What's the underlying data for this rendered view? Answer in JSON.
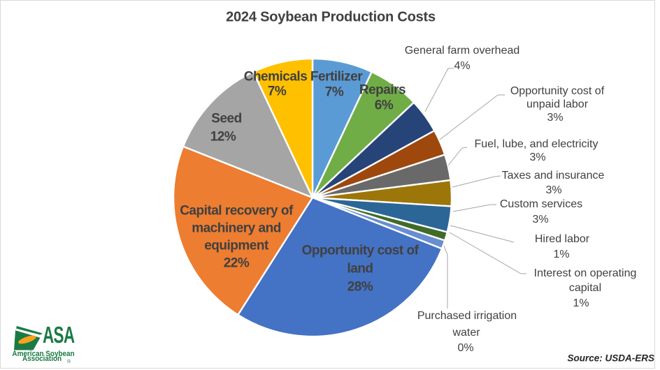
{
  "title": "2024 Soybean Production Costs",
  "source_note": "Source: USDA-ERS",
  "logo": {
    "org_abbr": "ASA",
    "org_line1": "American Soybean",
    "org_line2": "Association",
    "registered_mark": "®",
    "green": "#1B7A44",
    "orange": "#F6A21D"
  },
  "chart_data": {
    "type": "pie",
    "title": "2024 Soybean Production Costs",
    "start_angle_deg": 0,
    "direction": "clockwise",
    "label_text_color": "#404040",
    "leader_line_color": "#A6A6A6",
    "pct_suffix": "%",
    "segments": [
      {
        "label": "Fertilizer",
        "value": 7,
        "color": "#5B9BD5",
        "label_position": "inside",
        "label_lines": [
          "Fertilizer"
        ]
      },
      {
        "label": "Repairs",
        "value": 6,
        "color": "#70AD47",
        "label_position": "inside",
        "label_lines": [
          "Repairs"
        ]
      },
      {
        "label": "General farm overhead",
        "value": 4,
        "color": "#264478",
        "label_position": "outside",
        "label_lines": [
          "General farm overhead"
        ]
      },
      {
        "label": "Opportunity cost of unpaid labor",
        "value": 3,
        "color": "#9E480E",
        "label_position": "outside",
        "label_lines": [
          "Opportunity cost of",
          "unpaid labor"
        ]
      },
      {
        "label": "Fuel, lube, and electricity",
        "value": 3,
        "color": "#696969",
        "label_position": "outside",
        "label_lines": [
          "Fuel, lube, and electricity"
        ]
      },
      {
        "label": "Taxes and insurance",
        "value": 3,
        "color": "#9C7608",
        "label_position": "outside",
        "label_lines": [
          "Taxes and insurance"
        ]
      },
      {
        "label": "Custom services",
        "value": 3,
        "color": "#2C6697",
        "label_position": "outside",
        "label_lines": [
          "Custom services"
        ]
      },
      {
        "label": "Hired labor",
        "value": 1,
        "color": "#406B28",
        "label_position": "outside",
        "label_lines": [
          "Hired labor"
        ]
      },
      {
        "label": "Interest on operating capital",
        "value": 1,
        "color": "#698ED0",
        "label_position": "outside",
        "label_lines": [
          "Interest on operating",
          "capital"
        ]
      },
      {
        "label": "Purchased irrigation water",
        "value": 0,
        "color": "#F1975A",
        "label_position": "outside",
        "label_lines": [
          "Purchased irrigation",
          "water"
        ]
      },
      {
        "label": "Opportunity cost of land",
        "value": 28,
        "color": "#4472C4",
        "label_position": "inside",
        "label_lines": [
          "Opportunity cost of",
          "land"
        ]
      },
      {
        "label": "Capital recovery of machinery and equipment",
        "value": 22,
        "color": "#ED7D31",
        "label_position": "inside",
        "label_lines": [
          "Capital recovery of",
          "machinery and",
          "equipment"
        ]
      },
      {
        "label": "Seed",
        "value": 12,
        "color": "#A5A5A5",
        "label_position": "inside",
        "label_lines": [
          "Seed"
        ]
      },
      {
        "label": "Chemicals",
        "value": 7,
        "color": "#FFC000",
        "label_position": "inside",
        "label_lines": [
          "Chemicals"
        ]
      }
    ]
  }
}
